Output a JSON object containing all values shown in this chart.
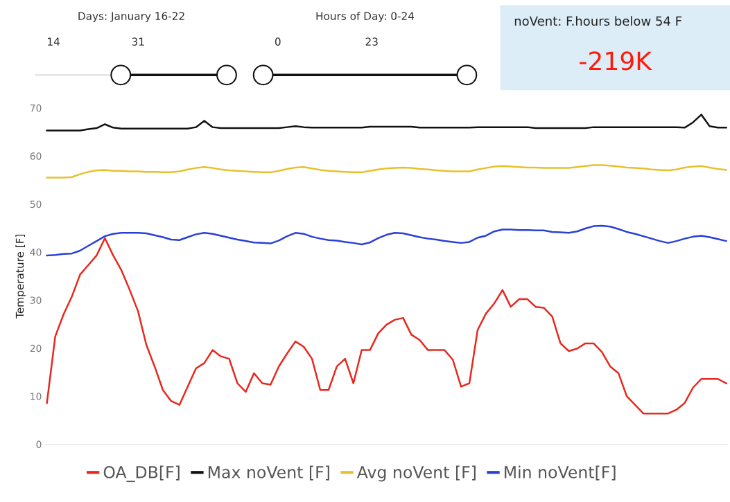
{
  "chart_data": [
    {
      "type": "other",
      "title": "Days: January 16-22",
      "annotations": [
        "14",
        "31"
      ]
    },
    {
      "type": "other",
      "title": "Hours of Day: 0-24",
      "annotations": [
        "0",
        "23"
      ]
    },
    {
      "type": "other",
      "title": "noVent: F.hours below 54 F",
      "annotations": [
        "-219K"
      ]
    },
    {
      "type": "line",
      "ylabel": "Temperature [F]",
      "ylim": [
        0,
        70
      ],
      "yticks": [
        0,
        10,
        20,
        30,
        40,
        50,
        60,
        70
      ],
      "tick_labels": "y",
      "grid": false,
      "legend": "bottom",
      "marker": "none",
      "line_style": "solid",
      "categories": [
        null,
        null,
        null,
        null,
        null,
        null,
        null,
        null,
        null,
        null,
        null,
        null,
        null,
        null,
        null,
        null,
        null,
        null,
        null,
        null,
        null,
        null,
        null,
        null,
        null,
        null,
        null,
        null,
        null,
        null,
        null,
        null,
        null,
        null,
        null,
        null,
        null,
        null,
        null,
        null,
        null,
        null,
        null,
        null,
        null,
        null,
        null,
        null,
        null,
        null,
        null,
        null,
        null,
        null,
        null,
        null,
        null,
        null,
        null,
        null,
        null,
        null,
        null,
        null,
        null,
        null,
        null,
        null,
        null,
        null,
        null,
        null,
        null,
        null,
        null,
        null,
        null,
        null,
        null,
        null,
        null,
        null,
        null
      ],
      "series": [
        {
          "name": "OA_DB[F]",
          "color": "#e8281e",
          "values": [
            8.6,
            22.4,
            27,
            30.7,
            35.3,
            37.3,
            39.3,
            42.9,
            39.3,
            36.2,
            32.1,
            27.7,
            20.7,
            16.2,
            11.3,
            9.0,
            8.2,
            12,
            15.8,
            16.9,
            19.6,
            18.3,
            17.8,
            12.7,
            10.9,
            14.8,
            12.7,
            12.4,
            16.2,
            18.9,
            21.4,
            20.3,
            17.8,
            11.3,
            11.3,
            16.2,
            17.8,
            12.7,
            19.6,
            19.6,
            23.1,
            24.9,
            25.9,
            26.3,
            22.8,
            21.7,
            19.6,
            19.6,
            19.6,
            17.6,
            12,
            12.7,
            23.8,
            27.2,
            29.3,
            32.1,
            28.6,
            30.2,
            30.2,
            28.6,
            28.4,
            26.6,
            21,
            19.4,
            19.9,
            21,
            21,
            19.2,
            16.2,
            14.8,
            10,
            8.2,
            6.4,
            6.4,
            6.4,
            6.4,
            7.2,
            8.6,
            11.8,
            13.6,
            13.6,
            13.6,
            12.7
          ]
        },
        {
          "name": "Max noVent [F]",
          "color": "#111111",
          "values": [
            65.3,
            65.3,
            65.3,
            65.3,
            65.3,
            65.6,
            65.8,
            66.6,
            65.9,
            65.7,
            65.7,
            65.7,
            65.7,
            65.7,
            65.7,
            65.7,
            65.7,
            65.7,
            66.0,
            67.3,
            66.0,
            65.8,
            65.8,
            65.8,
            65.8,
            65.8,
            65.8,
            65.8,
            65.8,
            66.0,
            66.2,
            66.0,
            65.9,
            65.9,
            65.9,
            65.9,
            65.9,
            65.9,
            65.9,
            66.1,
            66.1,
            66.1,
            66.1,
            66.1,
            66.1,
            65.9,
            65.9,
            65.9,
            65.9,
            65.9,
            65.9,
            65.9,
            66.0,
            66.0,
            66.0,
            66.0,
            66.0,
            66.0,
            66.0,
            65.8,
            65.8,
            65.8,
            65.8,
            65.8,
            65.8,
            65.8,
            66.0,
            66.0,
            66.0,
            66.0,
            66.0,
            66.0,
            66.0,
            66.0,
            66.0,
            66.0,
            66.0,
            65.9,
            67.0,
            68.6,
            66.2,
            65.9,
            65.9
          ]
        },
        {
          "name": "Avg noVent [F]",
          "color": "#e8c12a",
          "values": [
            55.5,
            55.5,
            55.5,
            55.6,
            56.2,
            56.7,
            57.0,
            57.1,
            56.9,
            56.9,
            56.8,
            56.8,
            56.7,
            56.7,
            56.6,
            56.6,
            56.8,
            57.2,
            57.5,
            57.7,
            57.5,
            57.2,
            57.0,
            56.9,
            56.8,
            56.7,
            56.6,
            56.6,
            56.9,
            57.3,
            57.6,
            57.7,
            57.4,
            57.1,
            56.9,
            56.8,
            56.7,
            56.6,
            56.6,
            56.9,
            57.2,
            57.4,
            57.5,
            57.6,
            57.5,
            57.3,
            57.2,
            57.0,
            56.9,
            56.8,
            56.8,
            56.8,
            57.2,
            57.5,
            57.8,
            57.9,
            57.8,
            57.7,
            57.6,
            57.6,
            57.5,
            57.5,
            57.5,
            57.5,
            57.7,
            57.9,
            58.1,
            58.1,
            58.0,
            57.8,
            57.6,
            57.5,
            57.4,
            57.2,
            57.1,
            57.0,
            57.2,
            57.6,
            57.8,
            57.9,
            57.6,
            57.3,
            57.1
          ]
        },
        {
          "name": "Min noVent[F]",
          "color": "#2840d8",
          "values": [
            39.3,
            39.4,
            39.6,
            39.7,
            40.3,
            41.3,
            42.3,
            43.3,
            43.8,
            44.0,
            44.0,
            44.0,
            43.9,
            43.5,
            43.1,
            42.6,
            42.5,
            43.1,
            43.7,
            44.0,
            43.8,
            43.4,
            43.0,
            42.6,
            42.3,
            42.0,
            41.9,
            41.8,
            42.4,
            43.3,
            44.0,
            43.8,
            43.2,
            42.8,
            42.5,
            42.4,
            42.1,
            41.9,
            41.6,
            42.0,
            42.9,
            43.6,
            44.0,
            43.9,
            43.5,
            43.1,
            42.8,
            42.6,
            42.3,
            42.1,
            41.9,
            42.1,
            43.0,
            43.4,
            44.3,
            44.7,
            44.7,
            44.6,
            44.6,
            44.5,
            44.5,
            44.2,
            44.1,
            44.0,
            44.3,
            44.9,
            45.4,
            45.5,
            45.3,
            44.8,
            44.2,
            43.8,
            43.3,
            42.8,
            42.3,
            41.9,
            42.3,
            42.8,
            43.2,
            43.4,
            43.1,
            42.7,
            42.3
          ]
        }
      ]
    }
  ]
}
